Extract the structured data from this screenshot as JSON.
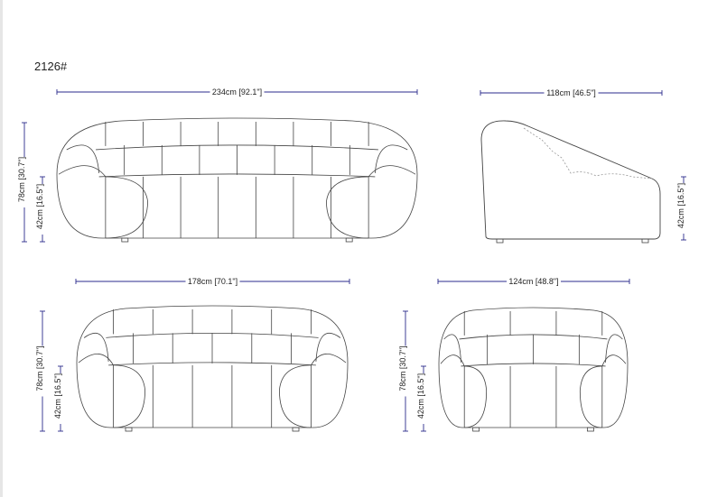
{
  "title": "2126#",
  "colors": {
    "dimension_line": "#2b2b8c",
    "outline": "#444444",
    "hidden_line": "#999999"
  },
  "views": {
    "three_seater_front": {
      "width_label": "234cm [92.1\"]",
      "height_label": "78cm [30.7\"]",
      "seat_label": "42cm [16.5\"]"
    },
    "side": {
      "depth_label": "118cm [46.5\"]",
      "seat_label": "42cm [16.5\"]"
    },
    "two_seater_front": {
      "width_label": "178cm [70.1\"]",
      "height_label": "78cm [30.7\"]",
      "seat_label": "42cm [16.5\"]"
    },
    "chair_front": {
      "width_label": "124cm [48.8\"]",
      "height_label": "78cm [30.7\"]",
      "seat_label": "42cm [16.5\"]"
    }
  }
}
